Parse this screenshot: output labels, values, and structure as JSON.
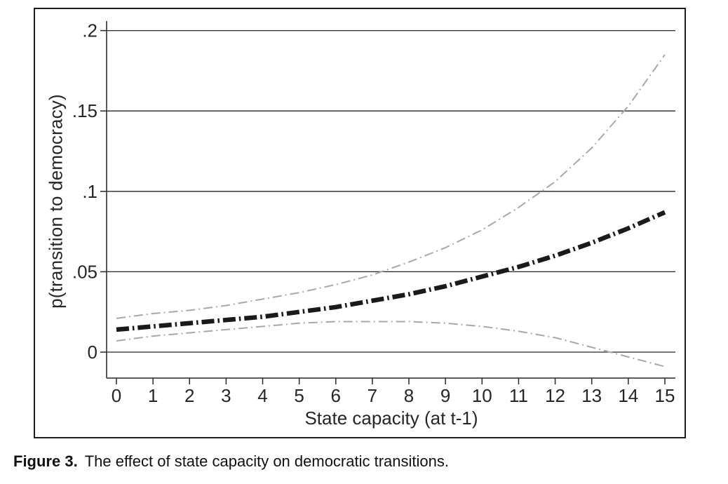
{
  "figure": {
    "caption_label": "Figure 3.",
    "caption_text": "The effect of state capacity on democratic transitions."
  },
  "chart_data": {
    "type": "line",
    "title": "",
    "xlabel": "State capacity (at t-1)",
    "ylabel": "p(transition to democracy)",
    "xlim": [
      0,
      15
    ],
    "ylim": [
      -0.016,
      0.206
    ],
    "grid": "horizontal",
    "legend": "none",
    "x": [
      0,
      1,
      2,
      3,
      4,
      5,
      6,
      7,
      8,
      9,
      10,
      11,
      12,
      13,
      14,
      15
    ],
    "x_ticks": [
      {
        "value": 0,
        "label": "0"
      },
      {
        "value": 1,
        "label": "1"
      },
      {
        "value": 2,
        "label": "2"
      },
      {
        "value": 3,
        "label": "3"
      },
      {
        "value": 4,
        "label": "4"
      },
      {
        "value": 5,
        "label": "5"
      },
      {
        "value": 6,
        "label": "6"
      },
      {
        "value": 7,
        "label": "7"
      },
      {
        "value": 8,
        "label": "8"
      },
      {
        "value": 9,
        "label": "9"
      },
      {
        "value": 10,
        "label": "10"
      },
      {
        "value": 11,
        "label": "11"
      },
      {
        "value": 12,
        "label": "12"
      },
      {
        "value": 13,
        "label": "13"
      },
      {
        "value": 14,
        "label": "14"
      },
      {
        "value": 15,
        "label": "15"
      }
    ],
    "y_ticks": [
      {
        "value": 0,
        "label": "0"
      },
      {
        "value": 0.05,
        "label": ".05"
      },
      {
        "value": 0.1,
        "label": ".1"
      },
      {
        "value": 0.15,
        "label": ".15"
      },
      {
        "value": 0.2,
        "label": ".2"
      }
    ],
    "series": [
      {
        "name": "upper-95ci",
        "color": "#a8a8a8",
        "width": 2,
        "dash": [
          13,
          5,
          2,
          5
        ],
        "values": [
          0.021,
          0.024,
          0.026,
          0.029,
          0.033,
          0.037,
          0.042,
          0.048,
          0.056,
          0.065,
          0.076,
          0.09,
          0.106,
          0.127,
          0.153,
          0.185
        ]
      },
      {
        "name": "lower-95ci",
        "color": "#a8a8a8",
        "width": 2,
        "dash": [
          13,
          5,
          2,
          5
        ],
        "values": [
          0.007,
          0.01,
          0.012,
          0.014,
          0.016,
          0.018,
          0.019,
          0.019,
          0.019,
          0.018,
          0.016,
          0.013,
          0.009,
          0.003,
          -0.003,
          -0.009
        ]
      },
      {
        "name": "point-estimate",
        "color": "#1a1a1a",
        "width": 6.5,
        "dash": [
          18,
          5,
          2.5,
          5
        ],
        "values": [
          0.014,
          0.016,
          0.018,
          0.02,
          0.022,
          0.025,
          0.028,
          0.032,
          0.036,
          0.041,
          0.047,
          0.053,
          0.06,
          0.068,
          0.077,
          0.087
        ]
      }
    ]
  }
}
